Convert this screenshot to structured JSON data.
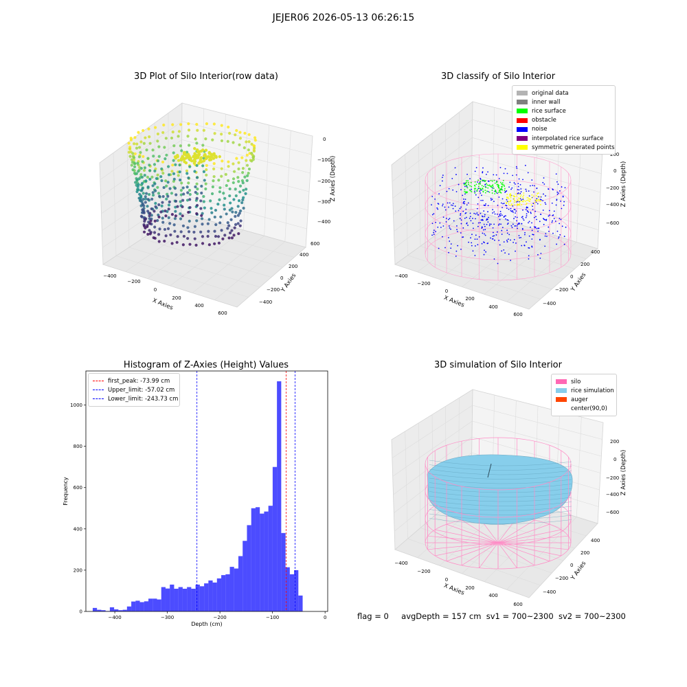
{
  "figure_title": "JEJER06 2026-05-13 06:26:15",
  "footer": {
    "flag": "flag = 0",
    "avg_depth": "avgDepth = 157 cm",
    "sv1": "sv1 = 700~2300",
    "sv2": "sv2 = 700~2300"
  },
  "chart_data": [
    {
      "type": "scatter",
      "title": "3D Plot of Silo Interior(row data)",
      "xlabel": "X Axies",
      "ylabel": "Y Axies",
      "zlabel": "Z Axies (Depth)",
      "xticks": [
        "−400",
        "−200",
        "0",
        "200",
        "400",
        "600"
      ],
      "yticks": [
        "−400",
        "−200",
        "0",
        "200",
        "400",
        "600"
      ],
      "zticks": [
        "0",
        "−100",
        "−200",
        "−300",
        "−400"
      ],
      "colormap": "viridis"
    },
    {
      "type": "scatter",
      "title": "3D classify of Silo Interior",
      "xlabel": "X Axies",
      "ylabel": "Y Axies",
      "zlabel": "Z Axies (Depth)",
      "xticks": [
        "−400",
        "−200",
        "0",
        "200",
        "400",
        "600"
      ],
      "yticks": [
        "−400",
        "−200",
        "0",
        "200",
        "400"
      ],
      "zticks": [
        "200",
        "0",
        "−200",
        "−400",
        "−600"
      ],
      "legend": [
        {
          "label": "original data",
          "color": "#b3b3b3"
        },
        {
          "label": "inner wall",
          "color": "#808080"
        },
        {
          "label": "rice surface",
          "color": "#00ff00"
        },
        {
          "label": "obstacle",
          "color": "#ff0000"
        },
        {
          "label": "noise",
          "color": "#0000ff"
        },
        {
          "label": "interpolated rice surface",
          "color": "#800080"
        },
        {
          "label": "symmetric generated points",
          "color": "#ffff00"
        }
      ]
    },
    {
      "type": "bar",
      "title": "Histogram of Z-Axies (Height) Values",
      "xlabel": "Depth (cm)",
      "ylabel": "Frequency",
      "xlim": [
        -455,
        5
      ],
      "ylim": [
        0,
        1165
      ],
      "xticks": [
        {
          "v": -400,
          "label": "−400"
        },
        {
          "v": -300,
          "label": "−300"
        },
        {
          "v": -200,
          "label": "−200"
        },
        {
          "v": -100,
          "label": "−100"
        },
        {
          "v": 0,
          "label": "0"
        }
      ],
      "yticks": [
        {
          "v": 0,
          "label": "0"
        },
        {
          "v": 200,
          "label": "200"
        },
        {
          "v": 400,
          "label": "400"
        },
        {
          "v": 600,
          "label": "600"
        },
        {
          "v": 800,
          "label": "800"
        },
        {
          "v": 1000,
          "label": "1000"
        }
      ],
      "bin_start": -442,
      "bin_width": 8.15,
      "values": [
        17,
        8,
        6,
        2,
        20,
        10,
        6,
        8,
        24,
        48,
        52,
        45,
        49,
        62,
        62,
        58,
        118,
        111,
        130,
        110,
        118,
        110,
        118,
        110,
        130,
        122,
        136,
        150,
        140,
        160,
        176,
        180,
        216,
        208,
        268,
        342,
        418,
        500,
        505,
        474,
        484,
        512,
        700,
        1115,
        380,
        214,
        180,
        200,
        77
      ],
      "bar_color": "#0000ff",
      "bar_alpha": 0.7,
      "vlines": [
        {
          "label": "first_peak: -73.99 cm",
          "value": -73.99,
          "color": "#ff0000"
        },
        {
          "label": "Upper_limit: -57.02 cm",
          "value": -57.02,
          "color": "#0000ff"
        },
        {
          "label": "Lower_limit: -243.73 cm",
          "value": -243.73,
          "color": "#0000ff"
        }
      ]
    },
    {
      "type": "surface",
      "title": "3D simulation of Silo Interior",
      "xlabel": "X Axies",
      "ylabel": "Y Axies",
      "zlabel": "Z Axies (Depth)",
      "xticks": [
        "−400",
        "−200",
        "0",
        "200",
        "400",
        "600"
      ],
      "yticks": [
        "−400",
        "−200",
        "0",
        "200",
        "400"
      ],
      "zticks": [
        "200",
        "0",
        "−200",
        "−400",
        "−600"
      ],
      "legend": [
        {
          "label": "silo",
          "color": "#ff69b4"
        },
        {
          "label": "rice simulation",
          "color": "#87ceeb"
        },
        {
          "label": "auger",
          "color": "#ff4500"
        },
        {
          "label": "center(90,0)",
          "color": "#ffffff"
        }
      ]
    }
  ]
}
